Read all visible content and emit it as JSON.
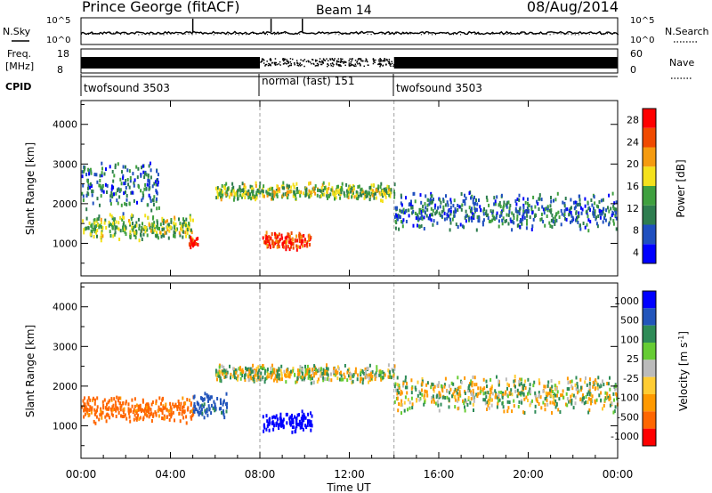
{
  "header": {
    "station": "Prince George (fitACF)",
    "beam": "Beam 14",
    "date": "08/Aug/2014"
  },
  "panels": {
    "nsky_label": "N.Sky",
    "nsearch_label": "N.Search",
    "freq_label_1": "Freq.",
    "freq_label_2": "[MHz]",
    "nave_label": "Nave",
    "cpid_label": "CPID",
    "nsky_ticks": [
      "10^5",
      "10^0"
    ],
    "nsearch_ticks": [
      "10^5",
      "10^0"
    ],
    "freq_ticks": [
      "18",
      "8"
    ],
    "nave_ticks": [
      "60",
      "0"
    ]
  },
  "cpid_segments": [
    {
      "label": "twofsound 3503",
      "start_hour": 0,
      "end_hour": 8
    },
    {
      "label": "normal (fast) 151",
      "start_hour": 8,
      "end_hour": 14
    },
    {
      "label": "twofsound 3503",
      "start_hour": 14,
      "end_hour": 24
    }
  ],
  "x_axis": {
    "label": "Time UT",
    "ticks": [
      "00:00",
      "04:00",
      "08:00",
      "12:00",
      "16:00",
      "20:00",
      "00:00"
    ]
  },
  "colors": {
    "power": [
      "#0000ff",
      "#1f4fbf",
      "#2e7d4f",
      "#3fa03f",
      "#f4e11c",
      "#f59b10",
      "#f04a00",
      "#ff0000"
    ],
    "velocity": [
      "#ff0000",
      "#ff6600",
      "#ff9900",
      "#ffcc33",
      "#bbbbbb",
      "#66cc33",
      "#2e8b57",
      "#2255bb",
      "#0000ff"
    ]
  },
  "chart_data": [
    {
      "type": "heatmap",
      "title": "",
      "xlabel": "",
      "ylabel": "Slant Range [km]",
      "xlim": [
        0,
        24
      ],
      "ylim": [
        180,
        4600
      ],
      "yticks": [
        "1000",
        "2000",
        "3000",
        "4000"
      ],
      "colorbar": {
        "label": "Power [dB]",
        "ticks": [
          "28",
          "24",
          "20",
          "16",
          "12",
          "8",
          "4"
        ],
        "range": [
          0,
          30
        ]
      },
      "scatter_bands": [
        {
          "t_start": 0.0,
          "t_end": 5.0,
          "range_center": 1400,
          "range_width": 350,
          "value": 14
        },
        {
          "t_start": 0.0,
          "t_end": 3.5,
          "range_center": 2400,
          "range_width": 700,
          "value": 8
        },
        {
          "t_start": 4.8,
          "t_end": 5.2,
          "range_center": 1000,
          "range_width": 200,
          "value": 30
        },
        {
          "t_start": 8.1,
          "t_end": 10.3,
          "range_center": 1050,
          "range_width": 250,
          "value": 26
        },
        {
          "t_start": 6.0,
          "t_end": 14.0,
          "range_center": 2300,
          "range_width": 250,
          "value": 14
        },
        {
          "t_start": 14.0,
          "t_end": 24.0,
          "range_center": 1800,
          "range_width": 500,
          "value": 8
        }
      ]
    },
    {
      "type": "heatmap",
      "title": "",
      "xlabel": "Time UT",
      "ylabel": "Slant Range [km]",
      "xlim": [
        0,
        24
      ],
      "ylim": [
        180,
        4600
      ],
      "yticks": [
        "1000",
        "2000",
        "3000",
        "4000"
      ],
      "colorbar": {
        "label": "Velocity [m s^-1]",
        "ticks": [
          "1000",
          "500",
          "100",
          "25",
          "-25",
          "-100",
          "-500",
          "-1000"
        ],
        "range": [
          -1000,
          1000
        ]
      },
      "scatter_bands": [
        {
          "t_start": 0.0,
          "t_end": 5.0,
          "range_center": 1400,
          "range_width": 350,
          "value": -150
        },
        {
          "t_start": 5.0,
          "t_end": 6.5,
          "range_center": 1500,
          "range_width": 400,
          "value": 150
        },
        {
          "t_start": 8.1,
          "t_end": 10.3,
          "range_center": 1100,
          "range_width": 300,
          "value": 600
        },
        {
          "t_start": 6.0,
          "t_end": 14.0,
          "range_center": 2300,
          "range_width": 250,
          "value": 0
        },
        {
          "t_start": 14.0,
          "t_end": 24.0,
          "range_center": 1800,
          "range_width": 500,
          "value": 0
        }
      ]
    }
  ]
}
